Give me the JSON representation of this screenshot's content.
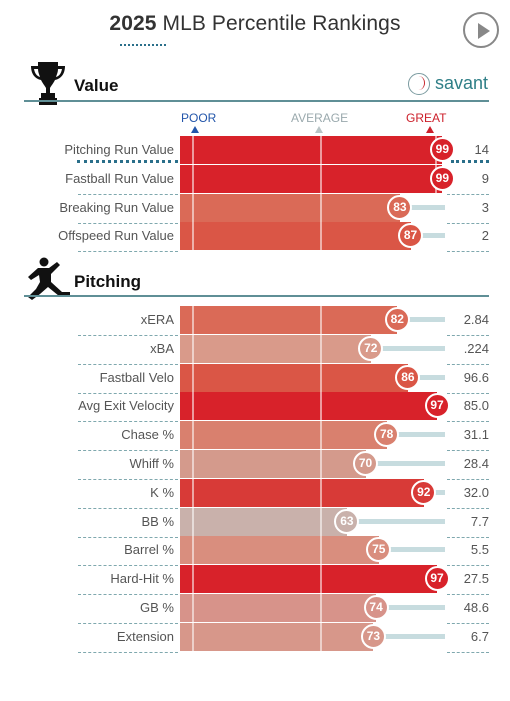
{
  "header": {
    "year": "2025",
    "title": "MLB Percentile Rankings"
  },
  "brand": {
    "name": "savant"
  },
  "scale": {
    "poor": "POOR",
    "average": "AVERAGE",
    "great": "GREAT"
  },
  "sections": [
    {
      "id": "value",
      "title": "Value",
      "icon": "trophy-icon",
      "rows": [
        {
          "name": "Pitching Run Value",
          "percentile": 99,
          "value": "14",
          "color": "#d8222a"
        },
        {
          "name": "Fastball Run Value",
          "percentile": 99,
          "value": "9",
          "color": "#d8222a"
        },
        {
          "name": "Breaking Run Value",
          "percentile": 83,
          "value": "3",
          "color": "#da6a57"
        },
        {
          "name": "Offspeed Run Value",
          "percentile": 87,
          "value": "2",
          "color": "#da5646"
        }
      ]
    },
    {
      "id": "pitching",
      "title": "Pitching",
      "icon": "pitcher-icon",
      "rows": [
        {
          "name": "xERA",
          "percentile": 82,
          "value": "2.84",
          "color": "#da6a57"
        },
        {
          "name": "xBA",
          "percentile": 72,
          "value": ".224",
          "color": "#d99a8a"
        },
        {
          "name": "Fastball Velo",
          "percentile": 86,
          "value": "96.6",
          "color": "#da5646"
        },
        {
          "name": "Avg Exit Velocity",
          "percentile": 97,
          "value": "85.0",
          "color": "#d8222a"
        },
        {
          "name": "Chase %",
          "percentile": 78,
          "value": "31.1",
          "color": "#d9806e"
        },
        {
          "name": "Whiff %",
          "percentile": 70,
          "value": "28.4",
          "color": "#d49a8c"
        },
        {
          "name": "K %",
          "percentile": 92,
          "value": "32.0",
          "color": "#d83a37"
        },
        {
          "name": "BB %",
          "percentile": 63,
          "value": "7.7",
          "color": "#c9b1ab"
        },
        {
          "name": "Barrel %",
          "percentile": 75,
          "value": "5.5",
          "color": "#d98e7e"
        },
        {
          "name": "Hard-Hit %",
          "percentile": 97,
          "value": "27.5",
          "color": "#d8222a"
        },
        {
          "name": "GB %",
          "percentile": 74,
          "value": "48.6",
          "color": "#d7938a"
        },
        {
          "name": "Extension",
          "percentile": 73,
          "value": "6.7",
          "color": "#d7978a"
        }
      ]
    }
  ]
}
